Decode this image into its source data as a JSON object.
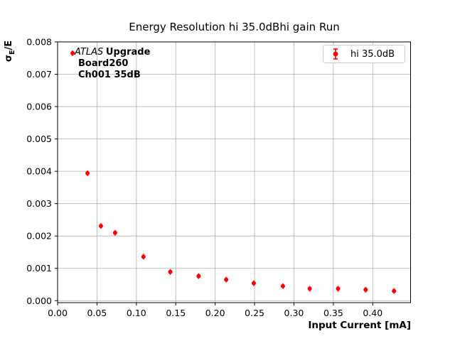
{
  "figure": {
    "title": "Energy Resolution hi 35.0dBhi gain Run",
    "background": "#ffffff"
  },
  "annotation": {
    "atlas": "ATLAS",
    "upgrade": "Upgrade",
    "line2": "Board260",
    "line3": "Ch001 35dB"
  },
  "legend": {
    "label": "hi 35.0dB",
    "marker_color": "#ff0000",
    "border_color": "#cccccc"
  },
  "ylabel_parts": {
    "main": "σ",
    "sub": "E",
    "after": "/E"
  },
  "chart_data": {
    "type": "scatter",
    "title": "Energy Resolution hi 35.0dBhi gain Run",
    "xlabel": "Input Current [mA]",
    "ylabel": "σE/E",
    "xlim": [
      0,
      0.448
    ],
    "ylim": [
      -6e-05,
      0.008
    ],
    "xticks": [
      0.0,
      0.05,
      0.1,
      0.15,
      0.2,
      0.25,
      0.3,
      0.35,
      0.4
    ],
    "xtick_labels": [
      "0.00",
      "0.05",
      "0.10",
      "0.15",
      "0.20",
      "0.25",
      "0.30",
      "0.35",
      "0.40"
    ],
    "yticks": [
      0.0,
      0.001,
      0.002,
      0.003,
      0.004,
      0.005,
      0.006,
      0.007,
      0.008
    ],
    "ytick_labels": [
      "0.000",
      "0.001",
      "0.002",
      "0.003",
      "0.004",
      "0.005",
      "0.006",
      "0.007",
      "0.008"
    ],
    "grid": true,
    "grid_color": "#b0b0b0",
    "legend_position": "upper right",
    "series": [
      {
        "name": "hi 35.0dB",
        "color": "#ff0000",
        "marker": "circle-with-errorbar",
        "x": [
          0.019,
          0.038,
          0.055,
          0.073,
          0.109,
          0.143,
          0.179,
          0.214,
          0.249,
          0.286,
          0.32,
          0.356,
          0.391,
          0.427
        ],
        "y": [
          0.00765,
          0.00394,
          0.00231,
          0.0021,
          0.00136,
          0.00089,
          0.00076,
          0.00065,
          0.00054,
          0.00045,
          0.00037,
          0.00037,
          0.00034,
          0.0003
        ]
      }
    ]
  }
}
